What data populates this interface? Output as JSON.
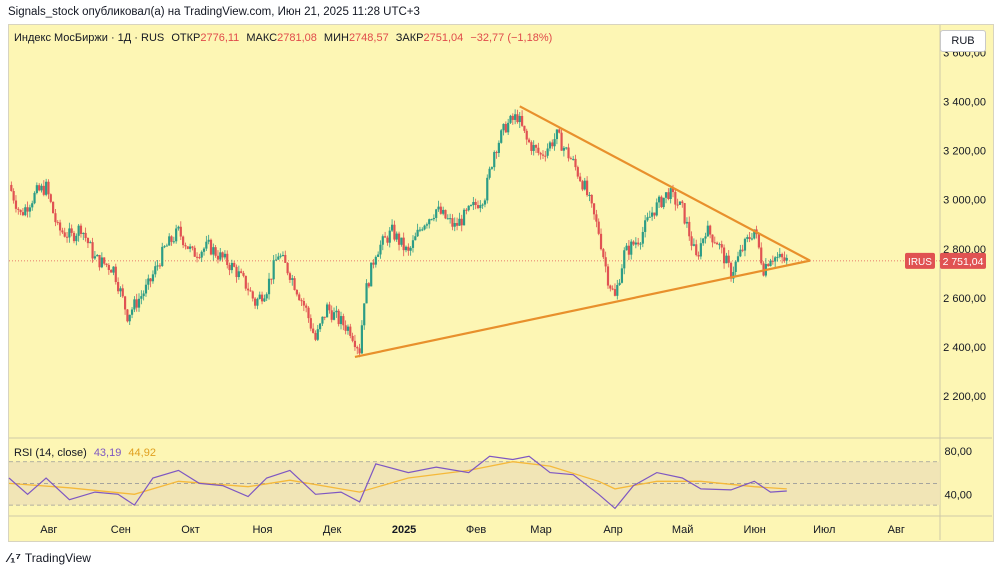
{
  "header": {
    "publish_line": "Signals_stock опубликовал(а) на TradingView.com, Июн 21, 2025 11:28 UTC+3"
  },
  "legend": {
    "name": "Индекс МосБиржи · 1Д · RUS",
    "open_label": "ОТКР",
    "open": "2776,11",
    "high_label": "МАКС",
    "high": "2781,08",
    "low_label": "МИН",
    "low": "2748,57",
    "close_label": "ЗАКР",
    "close": "2751,04",
    "change": "−32,77 (−1,18%)"
  },
  "currency_button": "RUB",
  "price_tag": {
    "symbol": "IRUS",
    "value": "2 751,04"
  },
  "rsi_legend": {
    "label": "RSI (14, close)",
    "rsi_value": "43,19",
    "ma_value": "44,92"
  },
  "footer": {
    "brand": "TradingView"
  },
  "colors": {
    "up": "#2c9c86",
    "down": "#e05252",
    "trendline": "#e8902c",
    "rsi": "#7e57c2",
    "rsi_ma": "#f5b93a",
    "background": "#fdf6b4"
  },
  "chart_data": {
    "type": "candlestick",
    "price_axis": {
      "ticks": [
        2200,
        2400,
        2600,
        2800,
        3000,
        3200,
        3400,
        3600
      ],
      "tick_labels": [
        "2 200,00",
        "2 400,00",
        "2 600,00",
        "2 800,00",
        "3 000,00",
        "3 200,00",
        "3 400,00",
        "3 600,00"
      ],
      "range": [
        2030,
        3650
      ]
    },
    "x_axis": {
      "labels": [
        "Авг",
        "Сен",
        "Окт",
        "Ноя",
        "Дек",
        "2025",
        "Фев",
        "Мар",
        "Апр",
        "Май",
        "Июн",
        "Июл",
        "Авг"
      ],
      "range": [
        "2024-07-20",
        "2025-08-25"
      ]
    },
    "close_path": [
      [
        "2024-07-20",
        3060
      ],
      [
        "2024-07-25",
        2940
      ],
      [
        "2024-08-01",
        3030
      ],
      [
        "2024-08-05",
        3050
      ],
      [
        "2024-08-10",
        2880
      ],
      [
        "2024-08-16",
        2850
      ],
      [
        "2024-08-20",
        2890
      ],
      [
        "2024-08-26",
        2760
      ],
      [
        "2024-09-03",
        2720
      ],
      [
        "2024-09-09",
        2530
      ],
      [
        "2024-09-12",
        2570
      ],
      [
        "2024-09-18",
        2650
      ],
      [
        "2024-09-25",
        2800
      ],
      [
        "2024-10-01",
        2870
      ],
      [
        "2024-10-07",
        2780
      ],
      [
        "2024-10-14",
        2810
      ],
      [
        "2024-10-20",
        2760
      ],
      [
        "2024-10-25",
        2720
      ],
      [
        "2024-10-31",
        2640
      ],
      [
        "2024-11-03",
        2580
      ],
      [
        "2024-11-08",
        2640
      ],
      [
        "2024-11-13",
        2780
      ],
      [
        "2024-11-18",
        2700
      ],
      [
        "2024-11-25",
        2550
      ],
      [
        "2024-11-29",
        2430
      ],
      [
        "2024-12-04",
        2560
      ],
      [
        "2024-12-09",
        2510
      ],
      [
        "2024-12-14",
        2470
      ],
      [
        "2024-12-18",
        2390
      ],
      [
        "2024-12-20",
        2600
      ],
      [
        "2024-12-25",
        2790
      ],
      [
        "2025-01-01",
        2870
      ],
      [
        "2025-01-08",
        2780
      ],
      [
        "2025-01-14",
        2900
      ],
      [
        "2025-01-20",
        2960
      ],
      [
        "2025-01-28",
        2890
      ],
      [
        "2025-02-03",
        2950
      ],
      [
        "2025-02-10",
        3020
      ],
      [
        "2025-02-14",
        3200
      ],
      [
        "2025-02-19",
        3300
      ],
      [
        "2025-02-24",
        3340
      ],
      [
        "2025-02-28",
        3240
      ],
      [
        "2025-03-06",
        3180
      ],
      [
        "2025-03-13",
        3260
      ],
      [
        "2025-03-20",
        3150
      ],
      [
        "2025-03-25",
        3050
      ],
      [
        "2025-03-31",
        2870
      ],
      [
        "2025-04-04",
        2680
      ],
      [
        "2025-04-07",
        2600
      ],
      [
        "2025-04-11",
        2780
      ],
      [
        "2025-04-18",
        2850
      ],
      [
        "2025-04-23",
        2950
      ],
      [
        "2025-04-30",
        3030
      ],
      [
        "2025-05-06",
        2960
      ],
      [
        "2025-05-12",
        2760
      ],
      [
        "2025-05-16",
        2880
      ],
      [
        "2025-05-21",
        2830
      ],
      [
        "2025-05-27",
        2700
      ],
      [
        "2025-06-01",
        2800
      ],
      [
        "2025-06-06",
        2880
      ],
      [
        "2025-06-10",
        2720
      ],
      [
        "2025-06-13",
        2770
      ],
      [
        "2025-06-20",
        2751
      ]
    ],
    "current_price": 2751.04,
    "trendlines": [
      {
        "name": "upper",
        "from": [
          "2025-02-25",
          3380
        ],
        "to": [
          "2025-06-30",
          2752
        ]
      },
      {
        "name": "lower",
        "from": [
          "2024-12-16",
          2360
        ],
        "to": [
          "2025-06-30",
          2752
        ]
      }
    ],
    "rsi": {
      "levels": [
        30,
        50,
        70
      ],
      "axis_ticks": [
        40,
        80
      ],
      "axis_labels": [
        "40,00",
        "80,00"
      ],
      "range": [
        20,
        90
      ],
      "path": [
        [
          "2024-07-20",
          55
        ],
        [
          "2024-07-28",
          40
        ],
        [
          "2024-08-05",
          55
        ],
        [
          "2024-08-15",
          35
        ],
        [
          "2024-08-26",
          42
        ],
        [
          "2024-09-05",
          40
        ],
        [
          "2024-09-12",
          30
        ],
        [
          "2024-09-20",
          55
        ],
        [
          "2024-10-01",
          62
        ],
        [
          "2024-10-10",
          50
        ],
        [
          "2024-10-20",
          48
        ],
        [
          "2024-10-31",
          38
        ],
        [
          "2024-11-08",
          55
        ],
        [
          "2024-11-18",
          62
        ],
        [
          "2024-11-29",
          40
        ],
        [
          "2024-12-10",
          42
        ],
        [
          "2024-12-18",
          33
        ],
        [
          "2024-12-25",
          68
        ],
        [
          "2025-01-08",
          60
        ],
        [
          "2025-01-20",
          65
        ],
        [
          "2025-02-03",
          60
        ],
        [
          "2025-02-12",
          75
        ],
        [
          "2025-02-22",
          72
        ],
        [
          "2025-03-01",
          75
        ],
        [
          "2025-03-10",
          60
        ],
        [
          "2025-03-20",
          58
        ],
        [
          "2025-03-31",
          40
        ],
        [
          "2025-04-07",
          27
        ],
        [
          "2025-04-15",
          48
        ],
        [
          "2025-04-25",
          60
        ],
        [
          "2025-05-06",
          55
        ],
        [
          "2025-05-14",
          45
        ],
        [
          "2025-05-27",
          44
        ],
        [
          "2025-06-06",
          52
        ],
        [
          "2025-06-13",
          42
        ],
        [
          "2025-06-20",
          43
        ]
      ],
      "ma_path": [
        [
          "2024-07-20",
          50
        ],
        [
          "2024-08-15",
          46
        ],
        [
          "2024-09-12",
          40
        ],
        [
          "2024-10-01",
          52
        ],
        [
          "2024-10-31",
          47
        ],
        [
          "2024-11-18",
          53
        ],
        [
          "2024-12-18",
          42
        ],
        [
          "2025-01-08",
          55
        ],
        [
          "2025-02-03",
          62
        ],
        [
          "2025-02-22",
          70
        ],
        [
          "2025-03-10",
          66
        ],
        [
          "2025-03-31",
          52
        ],
        [
          "2025-04-07",
          45
        ],
        [
          "2025-04-25",
          52
        ],
        [
          "2025-05-14",
          52
        ],
        [
          "2025-06-06",
          47
        ],
        [
          "2025-06-20",
          45
        ]
      ]
    }
  }
}
